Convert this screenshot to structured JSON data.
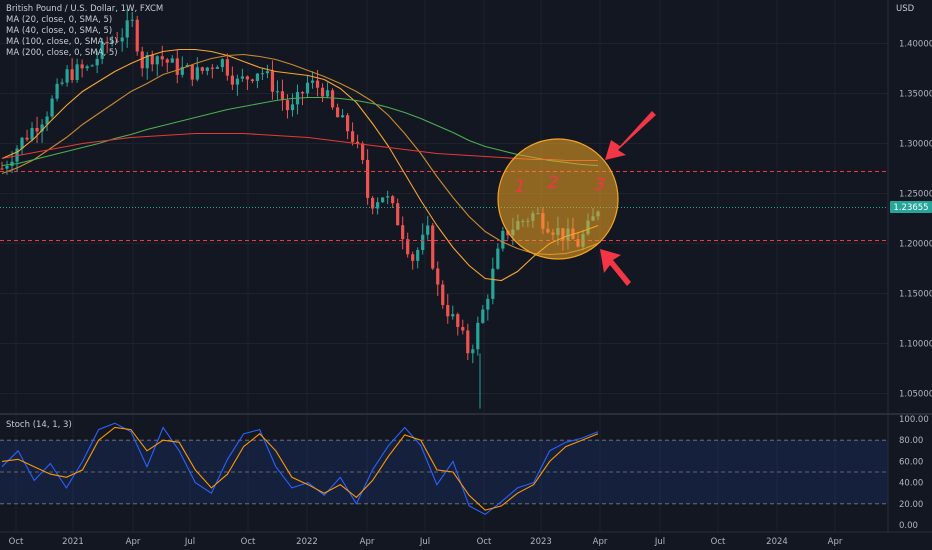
{
  "header": {
    "title": "British Pound / U.S. Dollar, 1W, FXCM",
    "ma_lines": [
      "MA (20, close, 0, SMA, 5)",
      "MA (40, close, 0, SMA, 5)",
      "MA (100, close, 0, SMA, 5)",
      "MA (200, close, 0, SMA, 5)"
    ]
  },
  "stoch_label": "Stoch (14, 1, 3)",
  "currency": "USD",
  "price_badge": "1.23655",
  "annotations": {
    "a1": "1",
    "a2": "2",
    "a3": "3"
  },
  "colors": {
    "background": "#131722",
    "up": "#26a69a",
    "down": "#ef5350",
    "ma20": "#f7a630",
    "ma40": "#c98a2e",
    "ma100": "#4caf50",
    "ma200": "#e53935",
    "stoch_k": "#2962ff",
    "stoch_d": "#ff9800",
    "highlight": "#f5a623",
    "arrow": "#f23645"
  },
  "chart_data": [
    {
      "type": "candlestick",
      "title": "British Pound / U.S. Dollar, 1W, FXCM",
      "ylim": [
        1.02,
        1.43
      ],
      "y_ticks": [
        "1.40000",
        "1.35000",
        "1.30000",
        "1.25000",
        "1.20000",
        "1.15000",
        "1.10000",
        "1.05000"
      ],
      "x_ticks": [
        "Oct",
        "2021",
        "Apr",
        "Jul",
        "Oct",
        "2022",
        "Apr",
        "Jul",
        "Oct",
        "2023",
        "Apr",
        "Jul",
        "Oct",
        "2024",
        "Apr"
      ],
      "horizontal_levels": [
        1.272,
        1.236,
        1.203
      ],
      "last_price": 1.23655,
      "series": [
        {
          "name": "MA (20, close, 0, SMA, 5)",
          "values": [
            1.285,
            1.292,
            1.305,
            1.322,
            1.338,
            1.352,
            1.362,
            1.372,
            1.38,
            1.387,
            1.392,
            1.394,
            1.394,
            1.392,
            1.388,
            1.382,
            1.376,
            1.372,
            1.37,
            1.368,
            1.364,
            1.355,
            1.341,
            1.32,
            1.297,
            1.27,
            1.243,
            1.218,
            1.196,
            1.178,
            1.165,
            1.163,
            1.172,
            1.187,
            1.2,
            1.207,
            1.212,
            1.218
          ]
        },
        {
          "name": "MA (40, close, 0, SMA, 5)",
          "values": [
            1.27,
            1.276,
            1.284,
            1.295,
            1.306,
            1.319,
            1.33,
            1.341,
            1.352,
            1.36,
            1.369,
            1.374,
            1.38,
            1.385,
            1.388,
            1.389,
            1.387,
            1.384,
            1.379,
            1.373,
            1.367,
            1.36,
            1.352,
            1.342,
            1.328,
            1.31,
            1.29,
            1.267,
            1.246,
            1.227,
            1.212,
            1.202,
            1.195,
            1.19,
            1.189,
            1.19,
            1.194,
            1.2
          ]
        },
        {
          "name": "MA (100, close, 0, SMA, 5)",
          "values": [
            1.278,
            1.28,
            1.284,
            1.288,
            1.292,
            1.296,
            1.3,
            1.305,
            1.309,
            1.314,
            1.318,
            1.322,
            1.326,
            1.33,
            1.334,
            1.337,
            1.34,
            1.343,
            1.345,
            1.346,
            1.346,
            1.345,
            1.343,
            1.34,
            1.336,
            1.331,
            1.325,
            1.318,
            1.311,
            1.303,
            1.297,
            1.293,
            1.289,
            1.286,
            1.283,
            1.281,
            1.279,
            1.278
          ]
        },
        {
          "name": "MA (200, close, 0, SMA, 5)",
          "values": [
            1.285,
            1.288,
            1.291,
            1.294,
            1.297,
            1.3,
            1.302,
            1.304,
            1.306,
            1.307,
            1.308,
            1.309,
            1.31,
            1.31,
            1.31,
            1.31,
            1.309,
            1.308,
            1.307,
            1.306,
            1.304,
            1.302,
            1.3,
            1.298,
            1.296,
            1.294,
            1.292,
            1.29,
            1.289,
            1.288,
            1.287,
            1.286,
            1.285,
            1.284,
            1.284,
            1.283,
            1.283,
            1.283
          ]
        }
      ]
    },
    {
      "type": "line",
      "title": "Stoch (14, 1, 3)",
      "ylim": [
        0,
        100
      ],
      "y_ticks": [
        "100.00",
        "80.00",
        "60.00",
        "40.00",
        "20.00",
        "0.00"
      ],
      "levels": [
        80,
        50,
        20
      ],
      "series": [
        {
          "name": "%K",
          "values": [
            55,
            70,
            42,
            58,
            35,
            60,
            90,
            96,
            88,
            55,
            92,
            70,
            40,
            30,
            62,
            86,
            90,
            55,
            35,
            40,
            28,
            45,
            20,
            52,
            75,
            92,
            75,
            38,
            60,
            18,
            10,
            22,
            35,
            40,
            70,
            78,
            82,
            88
          ]
        },
        {
          "name": "%D",
          "values": [
            60,
            62,
            55,
            48,
            45,
            52,
            80,
            92,
            90,
            70,
            80,
            78,
            52,
            35,
            48,
            74,
            86,
            70,
            45,
            38,
            30,
            38,
            26,
            42,
            65,
            85,
            80,
            52,
            50,
            28,
            14,
            18,
            30,
            38,
            60,
            74,
            80,
            86
          ]
        }
      ]
    }
  ]
}
